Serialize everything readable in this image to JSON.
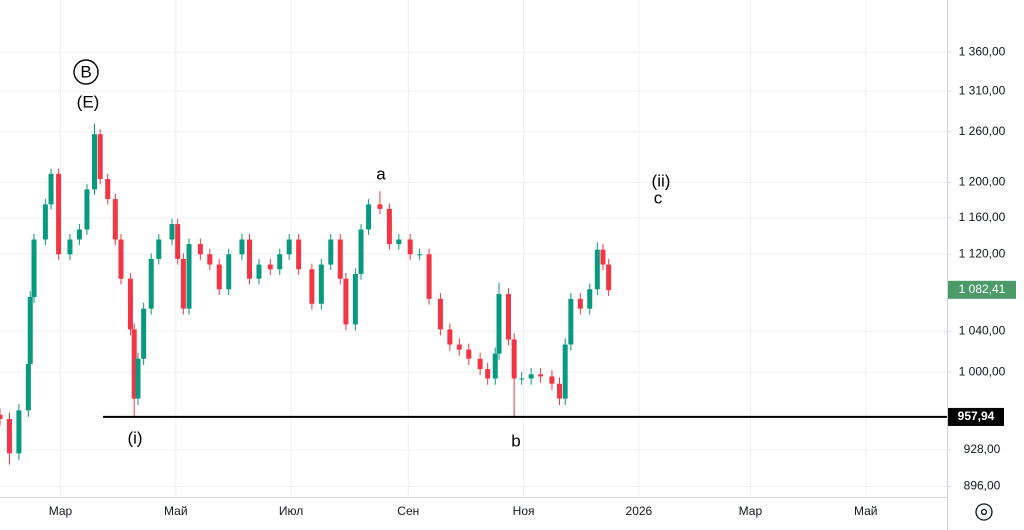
{
  "chart_data": {
    "type": "candlestick",
    "log_scale": true,
    "grid": true,
    "up_color": "#089981",
    "down_color": "#f23645",
    "x": [
      27,
      32,
      37,
      42,
      43,
      45,
      51,
      54,
      58,
      64,
      69,
      73,
      77,
      80,
      84,
      88,
      91,
      96,
      98,
      100,
      103,
      107,
      111,
      118,
      121,
      124,
      127,
      133,
      138,
      143,
      148,
      155,
      159,
      164,
      170,
      175,
      180,
      185,
      192,
      197,
      202,
      207,
      210,
      215,
      218,
      222,
      228,
      233,
      238,
      244,
      249,
      254,
      260,
      265,
      270,
      275,
      281,
      285,
      289,
      291,
      296,
      299,
      303,
      308,
      313,
      319,
      323,
      326,
      329,
      334,
      339,
      343,
      346,
      349
    ],
    "open": [
      960,
      956,
      925,
      964,
      1008,
      1075,
      1136,
      1175,
      1210,
      1120,
      1136,
      1147,
      1192,
      1257,
      1204,
      1181,
      1136,
      1094,
      1042,
      975,
      1013,
      1063,
      1115,
      1136,
      1153,
      1115,
      1063,
      1131,
      1120,
      1109,
      1083,
      1120,
      1136,
      1094,
      1109,
      1104,
      1120,
      1136,
      1104,
      1068,
      1109,
      1136,
      1094,
      1047,
      1099,
      1147,
      1175,
      1170,
      1131,
      1136,
      1120,
      1120,
      1073,
      1042,
      1027,
      1022,
      1013,
      1003,
      994,
      1018,
      1078,
      1032,
      994,
      994,
      998,
      996,
      989,
      975,
      1027,
      1073,
      1063,
      1083,
      1125,
      1109
    ],
    "high": [
      966,
      962,
      970,
      1014,
      1081,
      1142,
      1181,
      1216,
      1216,
      1142,
      1153,
      1198,
      1270,
      1263,
      1210,
      1187,
      1142,
      1100,
      1048,
      1019,
      1069,
      1121,
      1142,
      1159,
      1159,
      1121,
      1137,
      1137,
      1126,
      1115,
      1126,
      1142,
      1142,
      1115,
      1115,
      1126,
      1142,
      1142,
      1110,
      1115,
      1142,
      1142,
      1100,
      1105,
      1153,
      1181,
      1190,
      1176,
      1142,
      1142,
      1126,
      1126,
      1079,
      1048,
      1033,
      1028,
      1019,
      1009,
      1024,
      1090,
      1084,
      1038,
      1000,
      1004,
      1004,
      1002,
      995,
      1033,
      1079,
      1079,
      1089,
      1133,
      1131,
      1115
    ],
    "low": [
      950,
      915,
      919,
      958,
      1002,
      1069,
      1130,
      1169,
      1114,
      1114,
      1130,
      1141,
      1186,
      1198,
      1175,
      1130,
      1088,
      1036,
      958,
      969,
      1007,
      1057,
      1109,
      1130,
      1109,
      1057,
      1057,
      1114,
      1103,
      1077,
      1077,
      1114,
      1088,
      1088,
      1098,
      1098,
      1114,
      1098,
      1062,
      1062,
      1103,
      1088,
      1041,
      1041,
      1093,
      1141,
      1164,
      1125,
      1125,
      1114,
      1114,
      1067,
      1036,
      1021,
      1016,
      1007,
      997,
      988,
      988,
      1012,
      1026,
      958,
      988,
      988,
      990,
      983,
      969,
      969,
      1021,
      1057,
      1057,
      1077,
      1103,
      1076
    ],
    "close": [
      956,
      925,
      964,
      1008,
      1075,
      1136,
      1175,
      1210,
      1120,
      1136,
      1147,
      1192,
      1257,
      1204,
      1181,
      1136,
      1094,
      1042,
      975,
      1013,
      1063,
      1115,
      1136,
      1153,
      1115,
      1063,
      1131,
      1120,
      1109,
      1083,
      1120,
      1136,
      1094,
      1109,
      1104,
      1120,
      1136,
      1104,
      1068,
      1109,
      1136,
      1094,
      1047,
      1099,
      1147,
      1175,
      1170,
      1131,
      1136,
      1120,
      1120,
      1073,
      1042,
      1027,
      1022,
      1013,
      1003,
      994,
      1018,
      1078,
      1032,
      994,
      994,
      998,
      996,
      989,
      975,
      1027,
      1073,
      1063,
      1083,
      1125,
      1109,
      1082
    ],
    "xlim": [
      27,
      528
    ],
    "xticks": [
      {
        "value": 59,
        "label": "Мар"
      },
      {
        "value": 120,
        "label": "Май"
      },
      {
        "value": 181,
        "label": "Июл"
      },
      {
        "value": 243,
        "label": "Сен"
      },
      {
        "value": 304,
        "label": "Ноя"
      },
      {
        "value": 365,
        "label": "2026"
      },
      {
        "value": 424,
        "label": "Мар"
      },
      {
        "value": 485,
        "label": "Май"
      }
    ],
    "ylim": [
      887,
      1430
    ],
    "yticks": [
      {
        "value": 896,
        "label": "896,00"
      },
      {
        "value": 928,
        "label": "928,00"
      },
      {
        "value": 1000,
        "label": "1 000,00"
      },
      {
        "value": 1040,
        "label": "1 040,00"
      },
      {
        "value": 1120,
        "label": "1 120,00"
      },
      {
        "value": 1160,
        "label": "1 160,00"
      },
      {
        "value": 1200,
        "label": "1 200,00"
      },
      {
        "value": 1260,
        "label": "1 260,00"
      },
      {
        "value": 1310,
        "label": "1 310,00"
      },
      {
        "value": 1360,
        "label": "1 360,00"
      }
    ],
    "hline": {
      "value": 957.94,
      "label": "957,94",
      "color": "#000000"
    },
    "last_price": {
      "value": 1082.41,
      "label": "1 082,41",
      "color": "#4c9a6a"
    },
    "annotations": [
      "B",
      "(E)",
      "a",
      "(ii)",
      "c",
      "(i)",
      "b"
    ]
  }
}
